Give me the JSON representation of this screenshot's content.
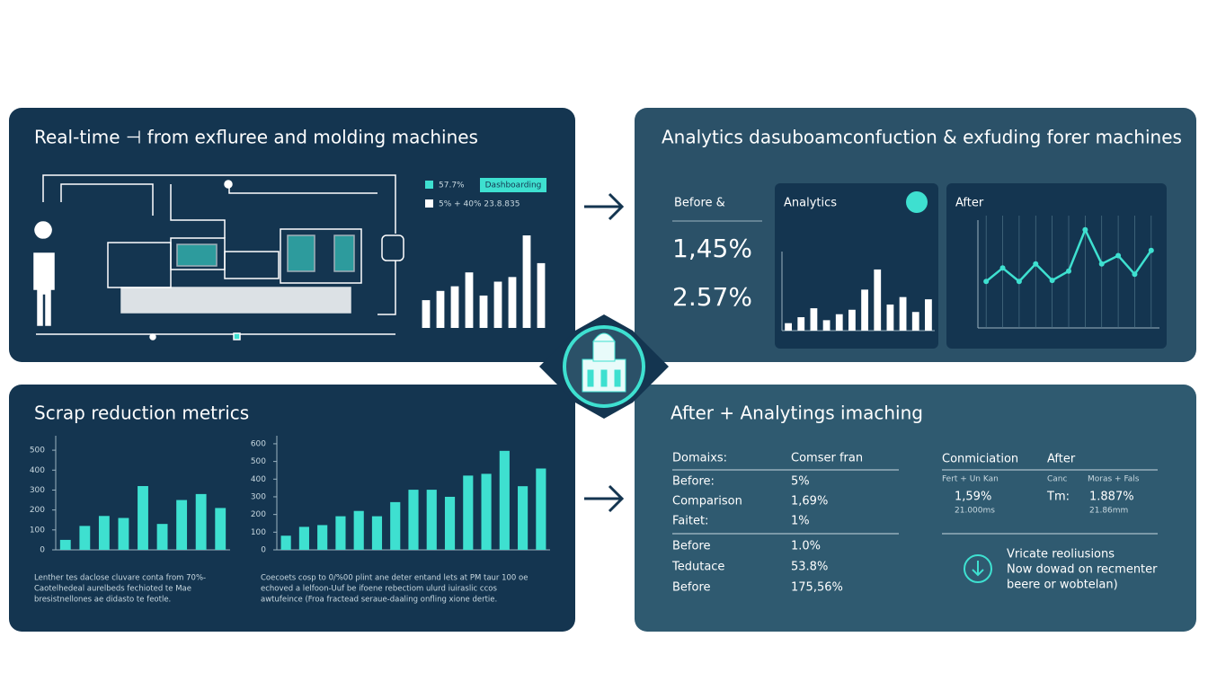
{
  "top_left": {
    "title": "Real-time ⊣ from exfluree and molding machines",
    "legend": [
      {
        "label": "57.7%",
        "tag": "Dashboarding",
        "color": "#3ee0d0"
      },
      {
        "label": "5% + 40% 23.8.835",
        "color": "#ffffff"
      }
    ],
    "chart": {
      "type": "bar",
      "values": [
        30,
        40,
        45,
        60,
        35,
        50,
        55,
        100,
        70
      ],
      "ylim": [
        0,
        100
      ],
      "color": "#ffffff"
    }
  },
  "top_right": {
    "title": "Analytics dasuboamconfuction & exfuding forer machines",
    "before": {
      "label": "Before &",
      "values": [
        "1,45%",
        "2.57%"
      ]
    },
    "analytics": {
      "title": "Analytics",
      "chart": {
        "type": "bar",
        "values": [
          10,
          18,
          30,
          14,
          22,
          28,
          55,
          82,
          35,
          45,
          25,
          42
        ],
        "ylim": [
          0,
          100
        ],
        "color": "#ffffff"
      }
    },
    "after": {
      "title": "After",
      "chart": {
        "type": "line",
        "values": [
          45,
          58,
          45,
          62,
          46,
          55,
          95,
          62,
          70,
          52,
          75
        ],
        "ylim": [
          0,
          100
        ],
        "color": "#3ee0d0"
      }
    }
  },
  "bottom_left": {
    "title": "Scrap reduction metrics",
    "charts": [
      {
        "type": "bar",
        "values": [
          50,
          120,
          170,
          160,
          320,
          130,
          250,
          280,
          210
        ],
        "ylim": [
          0,
          550
        ],
        "yticks": [
          0,
          100,
          200,
          300,
          400,
          500
        ],
        "color": "#3ee0d0",
        "caption": [
          "Lenther tes daclose cluvare conta from 70%-",
          "Caotelhedeal aurelbeds fechioted te Mae",
          "bresistnellones ae didasto te feotle."
        ]
      },
      {
        "type": "bar",
        "values": [
          80,
          130,
          140,
          190,
          220,
          190,
          270,
          340,
          340,
          300,
          420,
          430,
          560,
          360,
          460
        ],
        "ylim": [
          0,
          620
        ],
        "yticks": [
          0,
          100,
          200,
          300,
          400,
          500,
          600
        ],
        "color": "#3ee0d0",
        "caption": [
          "Coecoets cosp to 0/%00 plint ane deter entand lets at PM taur 100 oe",
          "echoved a lelfoon-Uuf be ifoene rebectiom ulurd iuiraslic ccos",
          "awtufeince (Froa fractead seraue-daaling onfling xione dertie."
        ]
      }
    ]
  },
  "bottom_right": {
    "title": "After + Analytings imaching",
    "table": {
      "header": [
        "Domaixs:",
        "Comser fran"
      ],
      "rows": [
        [
          "Before:",
          "5%"
        ],
        [
          "Comparison",
          "1,69%"
        ],
        [
          "Faitet:",
          "1%"
        ],
        [
          "Before",
          "1.0%"
        ],
        [
          "Tedutace",
          "53.8%"
        ],
        [
          "Before",
          "175,56%"
        ]
      ]
    },
    "summary": {
      "header": [
        "Conmiciation",
        "After"
      ],
      "sub": [
        "Fert + Un Kan",
        "Canc",
        "Moras + Fals"
      ],
      "values": [
        "1,59%",
        "21.000ms",
        "Tm:",
        "1.887%",
        "21.86mm"
      ]
    },
    "note": [
      "Vricate reoliusions",
      "Now dowad on recmenter",
      "beere or wobtelan)"
    ]
  }
}
